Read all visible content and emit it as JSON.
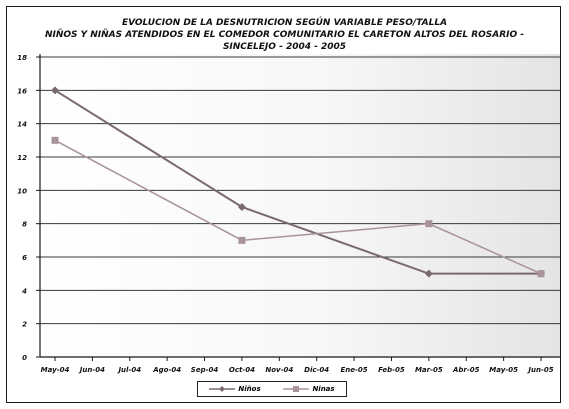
{
  "chart_data": {
    "type": "line",
    "title_lines": [
      "EVOLUCION DE LA DESNUTRICION SEGÚN VARIABLE PESO/TALLA",
      "NIÑOS Y NIÑAS ATENDIDOS EN EL COMEDOR COMUNITARIO EL CARETON ALTOS DEL ROSARIO -",
      "SINCELEJO - 2004 - 2005"
    ],
    "categories": [
      "May-04",
      "Jun-04",
      "Jul-04",
      "Ago-04",
      "Sep-04",
      "Oct-04",
      "Nov-04",
      "Dic-04",
      "Ene-05",
      "Feb-05",
      "Mar-05",
      "Abr-05",
      "May-05",
      "Jun-05"
    ],
    "series": [
      {
        "name": "Niños",
        "x": [
          "May-04",
          "Oct-04",
          "Mar-05",
          "Jun-05"
        ],
        "values": [
          16,
          9,
          5,
          5
        ],
        "color": "#7a6a6e",
        "marker": "diamond"
      },
      {
        "name": "Ninas",
        "x": [
          "May-04",
          "Oct-04",
          "Mar-05",
          "Jun-05"
        ],
        "values": [
          13,
          7,
          8,
          5
        ],
        "color": "#a89498",
        "marker": "square"
      }
    ],
    "y_ticks": [
      "0",
      "2",
      "4",
      "6",
      "8",
      "10",
      "12",
      "14",
      "16",
      "18"
    ],
    "ylim": [
      0,
      18
    ],
    "grid": true,
    "legend_position": "bottom"
  }
}
